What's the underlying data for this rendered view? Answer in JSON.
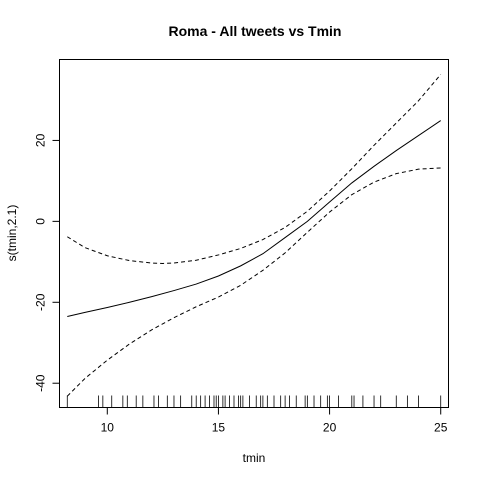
{
  "chart_data": {
    "type": "line",
    "title": "Roma - All tweets vs Tmin",
    "xlabel": "tmin",
    "ylabel": "s(tmin,2.1)",
    "xlim": [
      7.85,
      25.35
    ],
    "ylim": [
      -46,
      40
    ],
    "x_ticks": [
      "10",
      "15",
      "20",
      "25"
    ],
    "y_ticks": [
      "-40",
      "-20",
      "0",
      "20"
    ],
    "x_tick_values": [
      10,
      15,
      20,
      25
    ],
    "y_tick_values": [
      -40,
      -20,
      0,
      20
    ],
    "grid": false,
    "series": [
      {
        "role": "fit",
        "line_style": "solid",
        "points": [
          [
            8.2,
            -23.5
          ],
          [
            9,
            -22.5
          ],
          [
            10,
            -21.3
          ],
          [
            11,
            -20
          ],
          [
            12,
            -18.6
          ],
          [
            13,
            -17.1
          ],
          [
            14,
            -15.5
          ],
          [
            15,
            -13.5
          ],
          [
            16,
            -11
          ],
          [
            17,
            -8
          ],
          [
            18,
            -4
          ],
          [
            19,
            0
          ],
          [
            20,
            4.8
          ],
          [
            21,
            9.5
          ],
          [
            22,
            13.6
          ],
          [
            23,
            17.5
          ],
          [
            24,
            21.2
          ],
          [
            25,
            24.9
          ]
        ]
      },
      {
        "role": "upper-band",
        "line_style": "dashed",
        "points": [
          [
            8.2,
            -3.8
          ],
          [
            9,
            -6.5
          ],
          [
            10,
            -8.5
          ],
          [
            11,
            -9.7
          ],
          [
            12,
            -10.3
          ],
          [
            12.5,
            -10.4
          ],
          [
            13,
            -10.3
          ],
          [
            14,
            -9.6
          ],
          [
            15,
            -8.3
          ],
          [
            16,
            -6.7
          ],
          [
            17,
            -4.5
          ],
          [
            18,
            -1.5
          ],
          [
            19,
            2.5
          ],
          [
            20,
            7.5
          ],
          [
            21,
            13
          ],
          [
            22,
            18.8
          ],
          [
            23,
            24.3
          ],
          [
            24,
            29.8
          ],
          [
            25,
            36.3
          ]
        ]
      },
      {
        "role": "lower-band",
        "line_style": "dashed",
        "points": [
          [
            8.2,
            -43.2
          ],
          [
            9,
            -38.8
          ],
          [
            10,
            -34.3
          ],
          [
            11,
            -30.3
          ],
          [
            12,
            -26.8
          ],
          [
            13,
            -23.8
          ],
          [
            14,
            -21.1
          ],
          [
            15,
            -18.7
          ],
          [
            16,
            -15.8
          ],
          [
            17,
            -12.1
          ],
          [
            18,
            -7.8
          ],
          [
            19,
            -2.7
          ],
          [
            20,
            2.3
          ],
          [
            21,
            6.6
          ],
          [
            22,
            9.7
          ],
          [
            23,
            11.8
          ],
          [
            24,
            12.9
          ],
          [
            25,
            13.2
          ]
        ]
      }
    ],
    "rug": [
      8.2,
      9.6,
      9.8,
      10.2,
      10.7,
      10.9,
      11.3,
      11.6,
      12.1,
      12.3,
      12.7,
      13,
      13.3,
      13.8,
      14,
      14.2,
      14.4,
      14.6,
      14.8,
      14.9,
      15,
      15.2,
      15.3,
      15.5,
      15.7,
      15.9,
      16,
      16.1,
      16.4,
      16.7,
      16.9,
      17,
      17.2,
      17.5,
      17.8,
      18,
      18.2,
      18.5,
      18.9,
      19,
      19.3,
      19.6,
      19.9,
      20,
      20.4,
      21,
      21.1,
      21.5,
      22,
      22.3,
      23,
      23.5,
      24,
      25
    ]
  }
}
